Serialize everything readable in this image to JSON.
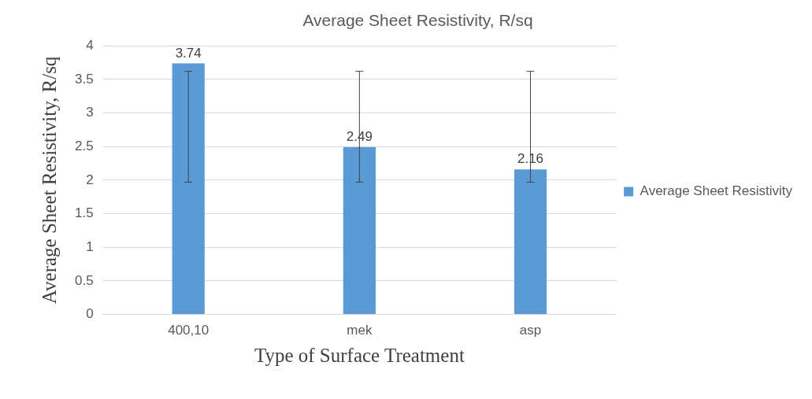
{
  "chart_data": {
    "type": "bar",
    "title": "Average Sheet Resistivity, R/sq",
    "xlabel": "Type of Surface Treatment",
    "ylabel": "Average Sheet Resistivity, R/sq",
    "categories": [
      "400,10",
      "mek",
      "asp"
    ],
    "series": [
      {
        "name": "Average Sheet Resistivity",
        "color": "#5b9bd5",
        "values": [
          3.74,
          2.49,
          2.16
        ],
        "errors": [
          [
            1.97,
            3.62
          ],
          [
            1.97,
            3.62
          ],
          [
            1.97,
            3.62
          ]
        ]
      }
    ],
    "ylim": [
      0,
      4
    ],
    "yticks": [
      0,
      0.5,
      1,
      1.5,
      2,
      2.5,
      3,
      3.5,
      4
    ],
    "grid": "y",
    "legend": "right",
    "data_labels": true
  }
}
